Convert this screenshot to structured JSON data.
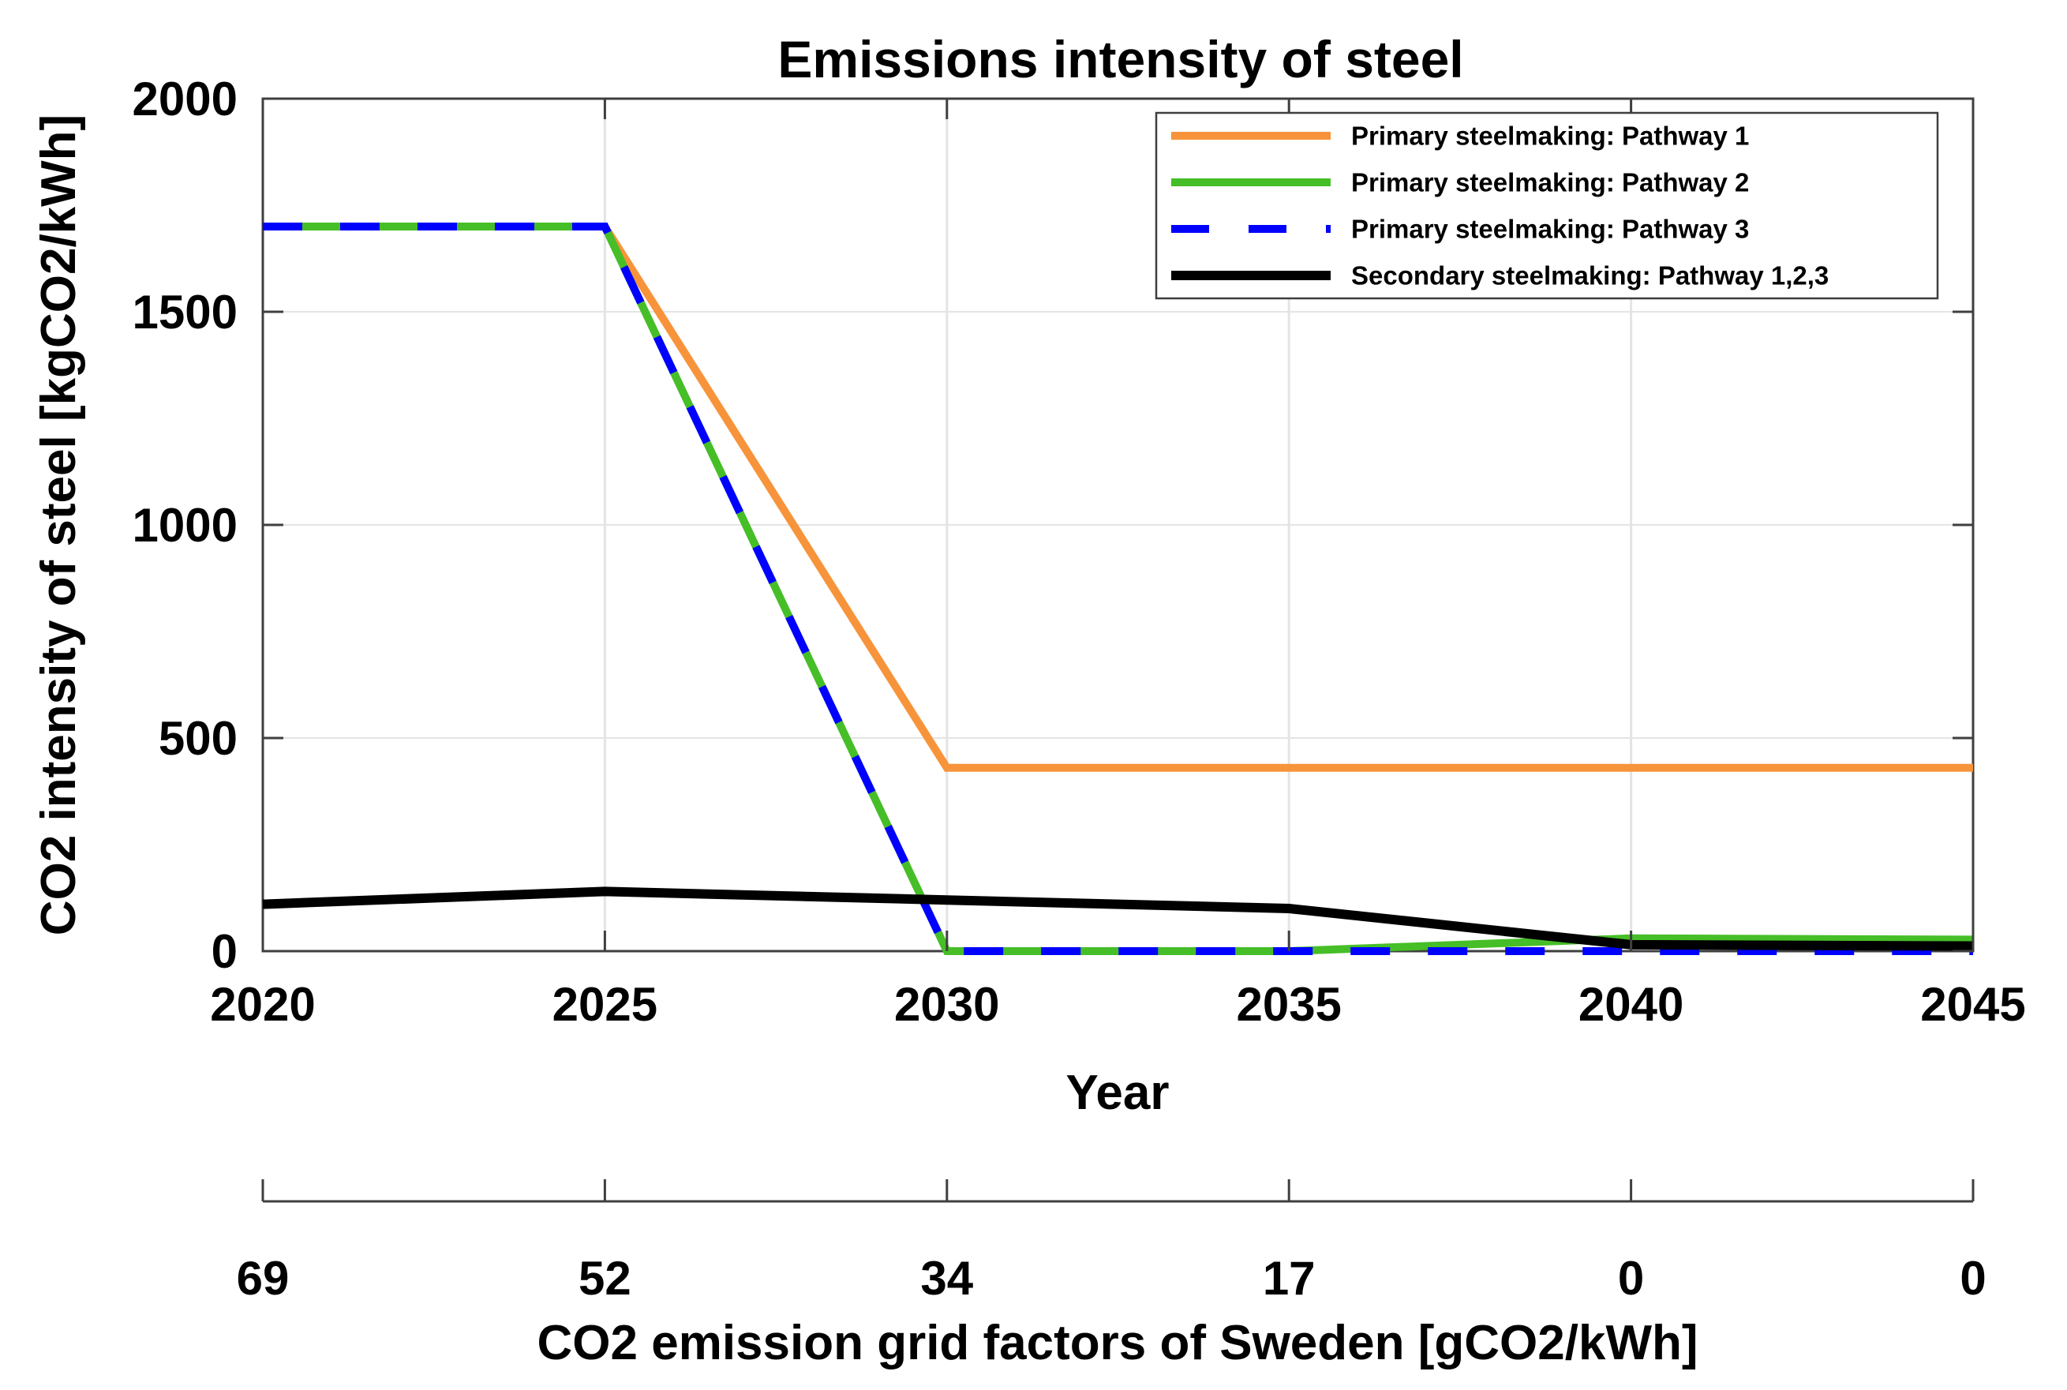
{
  "figure": {
    "background": "#FFFFFF"
  },
  "chart_data": {
    "type": "line",
    "title": "Emissions intensity of steel",
    "xlabel": "Year",
    "ylabel": "CO2 intensity of steel [kgCO2/kWh]",
    "x": [
      2020,
      2025,
      2030,
      2035,
      2040,
      2045
    ],
    "x_tick_labels": [
      "2020",
      "2025",
      "2030",
      "2035",
      "2040",
      "2045"
    ],
    "xlim": [
      2020,
      2045
    ],
    "ylim": [
      0,
      2000
    ],
    "y_ticks": [
      0,
      500,
      1000,
      1500,
      2000
    ],
    "y_tick_labels": [
      "0",
      "500",
      "1000",
      "1500",
      "2000"
    ],
    "grid": true,
    "legend_position": "top-right",
    "series": [
      {
        "name": "Primary steelmaking: Pathway 1",
        "color": "#F7943B",
        "style": "solid",
        "width": 10,
        "values": [
          1700,
          1700,
          430,
          430,
          430,
          430
        ]
      },
      {
        "name": "Primary steelmaking: Pathway 2",
        "color": "#46BE28",
        "style": "solid",
        "width": 10,
        "values": [
          1700,
          1700,
          0,
          0,
          30,
          27
        ]
      },
      {
        "name": "Primary steelmaking: Pathway 3",
        "color": "#0000FF",
        "style": "dashed",
        "width": 10,
        "values": [
          1700,
          1700,
          0,
          0,
          0,
          0
        ]
      },
      {
        "name": "Secondary steelmaking: Pathway 1,2,3",
        "color": "#000000",
        "style": "solid",
        "width": 12,
        "values": [
          110,
          140,
          120,
          100,
          15,
          12
        ]
      }
    ],
    "secondary_axis": {
      "label": "CO2 emission grid factors of Sweden [gCO2/kWh]",
      "tick_labels": [
        "69",
        "52",
        "34",
        "17",
        "0",
        "0"
      ]
    },
    "colors": {
      "grid_line": "#E4E4E4",
      "axis_box": "#3F3F3F",
      "text": "#000000",
      "legend_border": "#3F3F3F",
      "legend_background": "#FFFFFF"
    }
  }
}
